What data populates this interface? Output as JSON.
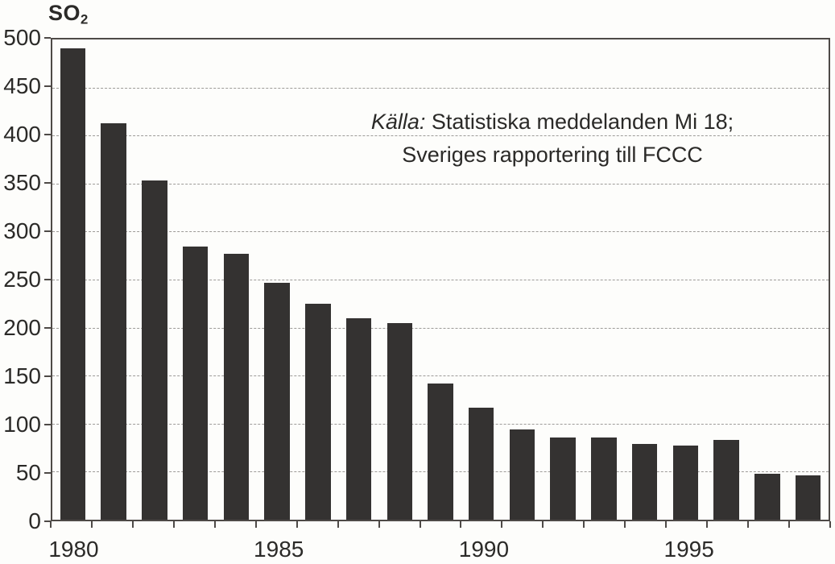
{
  "chart_data": {
    "type": "bar",
    "title": "SO₂",
    "title_base": "SO",
    "title_subscript": "2",
    "ylabel": "SO₂",
    "xlabel": "",
    "categories": [
      "1980",
      "1981",
      "1982",
      "1983",
      "1984",
      "1985",
      "1986",
      "1987",
      "1988",
      "1989",
      "1990",
      "1991",
      "1992",
      "1993",
      "1994",
      "1995",
      "1996",
      "1997",
      "1998"
    ],
    "values": [
      491,
      413,
      353,
      284,
      277,
      247,
      225,
      210,
      205,
      142,
      117,
      94,
      86,
      86,
      79,
      77,
      83,
      48,
      46
    ],
    "ylim": [
      0,
      500
    ],
    "yticks": [
      0,
      50,
      100,
      150,
      200,
      250,
      300,
      350,
      400,
      450,
      500
    ],
    "ytick_labels": [
      "0",
      "50",
      "100",
      "150",
      "200",
      "250",
      "300",
      "350",
      "400",
      "450",
      "500"
    ],
    "xtick_labels": [
      {
        "label": "1980",
        "index": 0
      },
      {
        "label": "1985",
        "index": 5
      },
      {
        "label": "1990",
        "index": 10
      },
      {
        "label": "1995",
        "index": 15
      }
    ],
    "grid": true,
    "legend_position": "none",
    "bar_color": "#343231",
    "gridline_color": "#9d9b98",
    "frame_color": "#4e4a47",
    "annotation": {
      "full_text": "Källa: Statistiska meddelanden Mi 18; Sveriges rapportering till FCCC",
      "prefix_italic": "Källa:",
      "line1_rest": " Statistiska meddelanden Mi 18;",
      "line2": "Sveriges rapportering till FCCC"
    }
  }
}
